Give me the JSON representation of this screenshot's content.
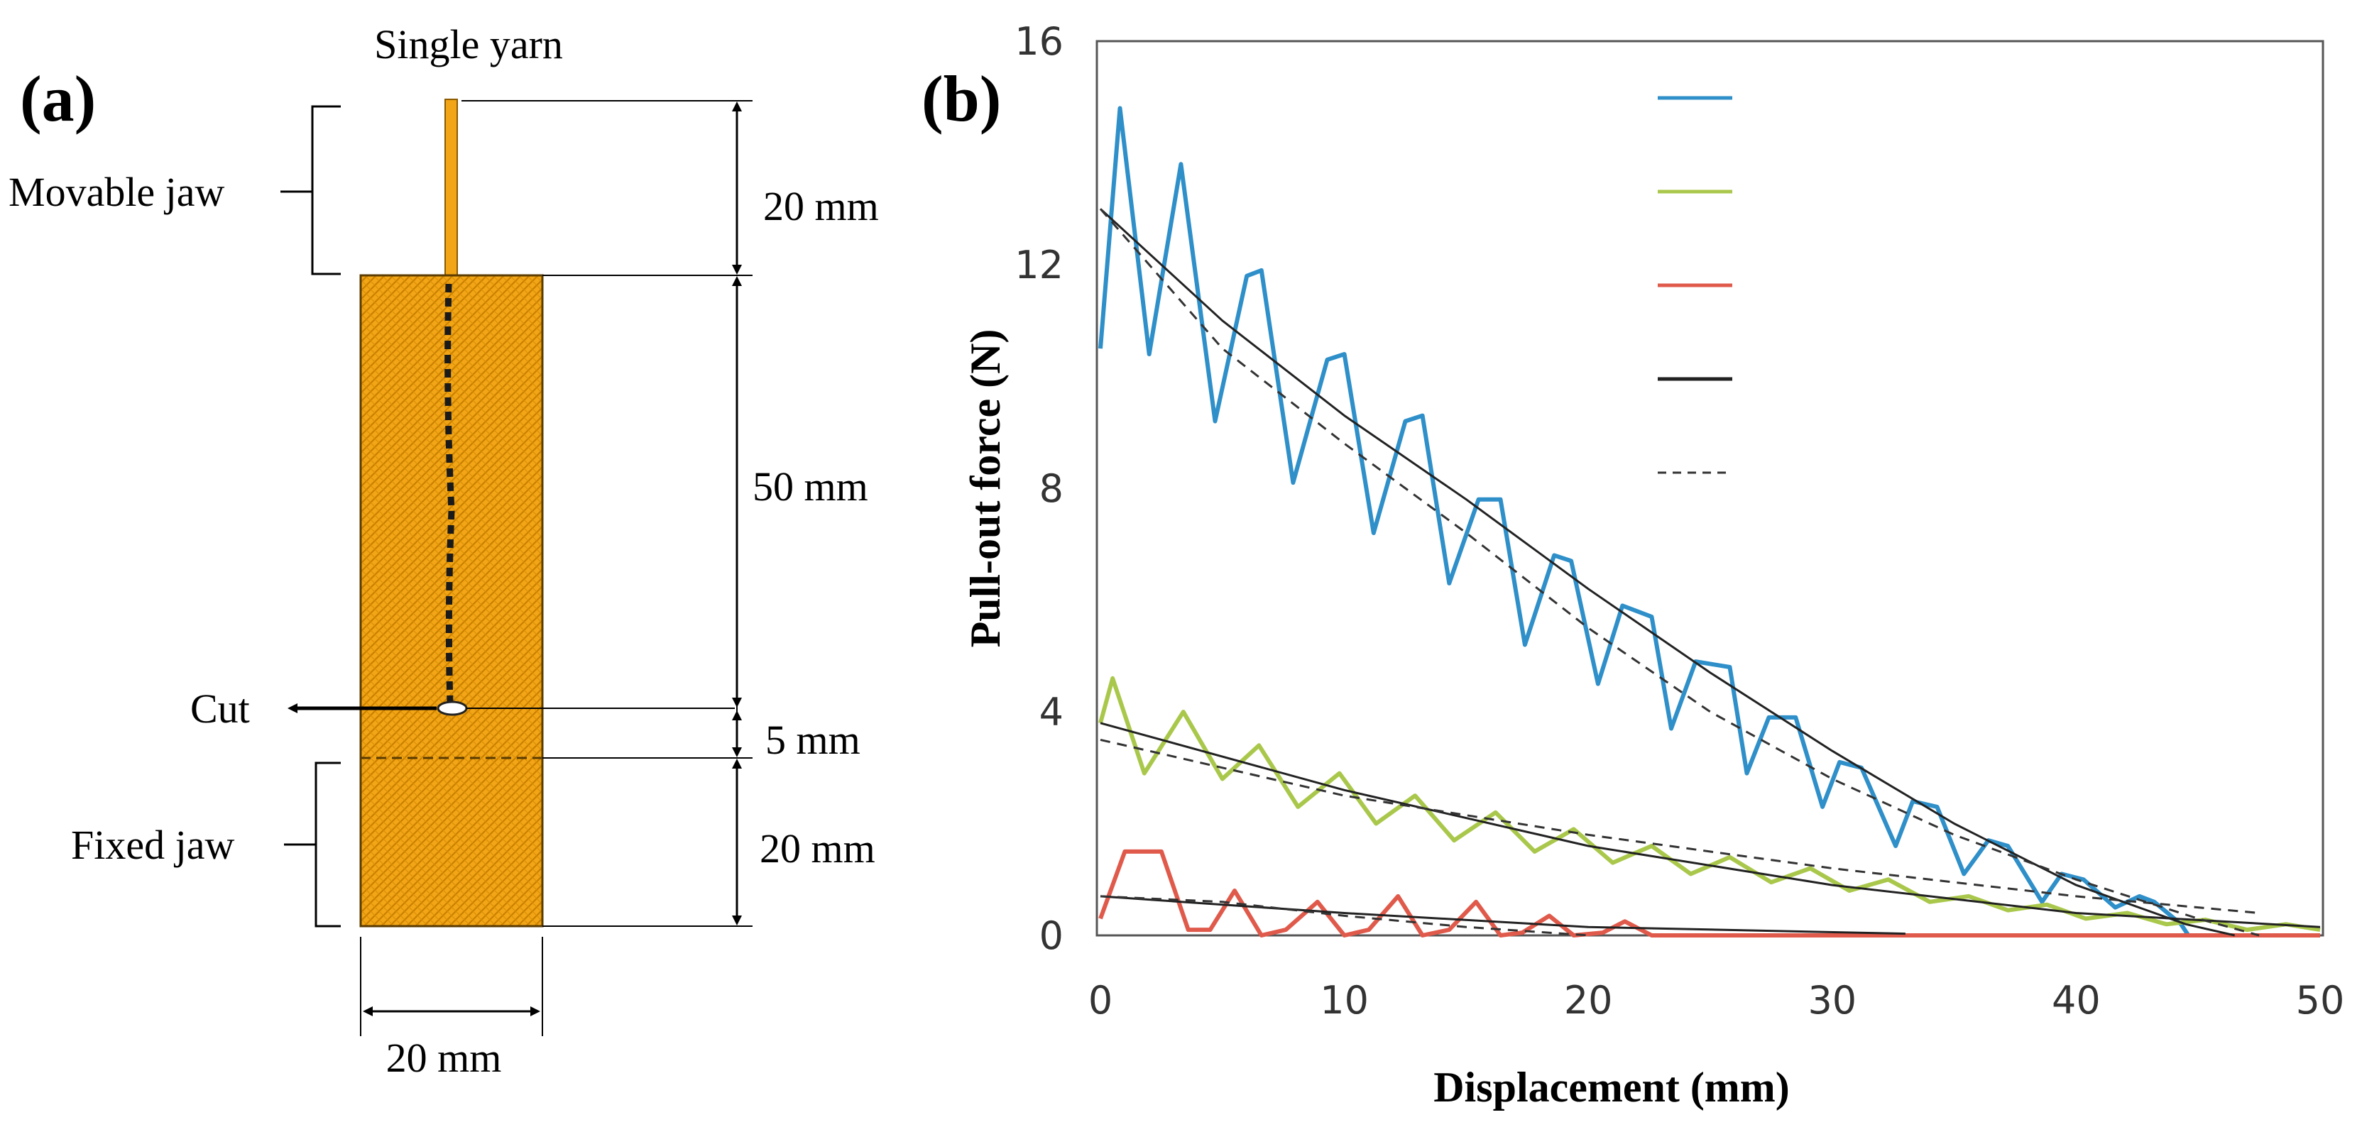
{
  "panel_a": {
    "label": "(a)",
    "yarn_label": "Single yarn",
    "movable_jaw_label": "Movable jaw",
    "fixed_jaw_label": "Fixed jaw",
    "cut_label": "Cut",
    "dim_top": "20 mm",
    "dim_middle": "50 mm",
    "dim_gap": "5 mm",
    "dim_bottom": "20 mm",
    "dim_width": "20 mm",
    "fabric_color": "#F2A516",
    "fabric_dot_color": "#C97F00"
  },
  "panel_b": {
    "label": "(b)"
  },
  "chart_data": {
    "type": "line",
    "title": "",
    "xlabel": "Displacement (mm)",
    "ylabel": "Pull-out force (N)",
    "xlim": [
      0,
      50
    ],
    "ylim": [
      0,
      16
    ],
    "x_ticks": [
      "0",
      "10",
      "20",
      "30",
      "40",
      "50"
    ],
    "y_ticks": [
      "0",
      "4",
      "8",
      "12",
      "16"
    ],
    "grid": false,
    "legend_position": "top-right",
    "legend_labels_visible": false,
    "series": [
      {
        "color": "#2E8FC9",
        "style": "solid",
        "x": [
          0,
          0.8,
          2,
          3.3,
          4.7,
          6,
          6.6,
          7.9,
          9.3,
          10,
          11.2,
          12.5,
          13.2,
          14.3,
          15.5,
          16.4,
          17.4,
          18.6,
          19.3,
          20.4,
          21.4,
          22.6,
          23.4,
          24.4,
          25.8,
          26.5,
          27.4,
          28.5,
          29.6,
          30.3,
          31.2,
          32.6,
          33.3,
          34.3,
          35.4,
          36.4,
          37.2,
          38.6,
          39.4,
          40.3,
          41.6,
          42.6,
          43.2,
          44.3,
          44.6
        ],
        "y": [
          10.5,
          14.8,
          10.4,
          13.8,
          9.2,
          11.8,
          11.9,
          8.1,
          10.3,
          10.4,
          7.2,
          9.2,
          9.3,
          6.3,
          7.8,
          7.8,
          5.2,
          6.8,
          6.7,
          4.5,
          5.9,
          5.7,
          3.7,
          4.9,
          4.8,
          2.9,
          3.9,
          3.9,
          2.3,
          3.1,
          3.0,
          1.6,
          2.4,
          2.3,
          1.1,
          1.7,
          1.6,
          0.6,
          1.1,
          1.0,
          0.5,
          0.7,
          0.6,
          0.2,
          0
        ]
      },
      {
        "color": "#A9C84B",
        "style": "solid",
        "x": [
          0,
          0.5,
          1.8,
          3.4,
          5,
          6.5,
          8.1,
          9.8,
          11.3,
          12.9,
          14.5,
          16.2,
          17.8,
          19.4,
          21,
          22.6,
          24.2,
          25.8,
          27.5,
          29.1,
          30.7,
          32.3,
          34,
          35.6,
          37.2,
          38.8,
          40.4,
          42.1,
          43.7,
          45.3,
          47,
          48.6,
          50
        ],
        "y": [
          3.8,
          4.6,
          2.9,
          4.0,
          2.8,
          3.4,
          2.3,
          2.9,
          2.0,
          2.5,
          1.7,
          2.2,
          1.5,
          1.9,
          1.3,
          1.6,
          1.1,
          1.4,
          0.95,
          1.2,
          0.8,
          1.0,
          0.6,
          0.7,
          0.45,
          0.55,
          0.3,
          0.4,
          0.2,
          0.28,
          0.1,
          0.2,
          0.1
        ]
      },
      {
        "color": "#E05A4B",
        "style": "solid",
        "x": [
          0,
          1,
          2.5,
          3.6,
          4.5,
          5.5,
          6.6,
          7.6,
          8.9,
          10,
          11,
          12.2,
          13.2,
          14.3,
          15.4,
          16.4,
          17.3,
          18.4,
          19.4,
          20.6,
          21.5,
          22.6,
          50
        ],
        "y": [
          0.3,
          1.5,
          1.5,
          0.1,
          0.1,
          0.8,
          0,
          0.1,
          0.6,
          0,
          0.1,
          0.7,
          0,
          0.1,
          0.6,
          0,
          0.05,
          0.35,
          0,
          0.05,
          0.25,
          0,
          0
        ]
      },
      {
        "color": "#222222",
        "style": "solid",
        "x": [
          0,
          5,
          10,
          15,
          20,
          25,
          30,
          35,
          40,
          44.5,
          46.5
        ],
        "y": [
          13.0,
          11.0,
          9.3,
          7.8,
          6.2,
          4.7,
          3.3,
          2.0,
          0.9,
          0.2,
          0
        ]
      },
      {
        "color": "#222222",
        "style": "solid",
        "x": [
          0,
          10,
          20,
          30,
          40,
          50
        ],
        "y": [
          3.8,
          2.6,
          1.6,
          0.9,
          0.4,
          0.15
        ]
      },
      {
        "color": "#222222",
        "style": "solid",
        "x": [
          0,
          10,
          20,
          33
        ],
        "y": [
          0.7,
          0.4,
          0.15,
          0.03
        ]
      },
      {
        "color": "#333333",
        "style": "dashed",
        "x": [
          0,
          5,
          10,
          15,
          20,
          25,
          30,
          35,
          40,
          45,
          47.5
        ],
        "y": [
          13.0,
          10.5,
          8.8,
          7.2,
          5.5,
          4.0,
          2.8,
          1.8,
          1.0,
          0.3,
          0
        ]
      },
      {
        "color": "#333333",
        "style": "dashed",
        "x": [
          0,
          10,
          20,
          30,
          40,
          47.5
        ],
        "y": [
          3.5,
          2.5,
          1.8,
          1.2,
          0.7,
          0.4
        ]
      },
      {
        "color": "#333333",
        "style": "dashed",
        "x": [
          0,
          5,
          10,
          15,
          20
        ],
        "y": [
          0.7,
          0.6,
          0.35,
          0.15,
          0
        ]
      }
    ]
  }
}
